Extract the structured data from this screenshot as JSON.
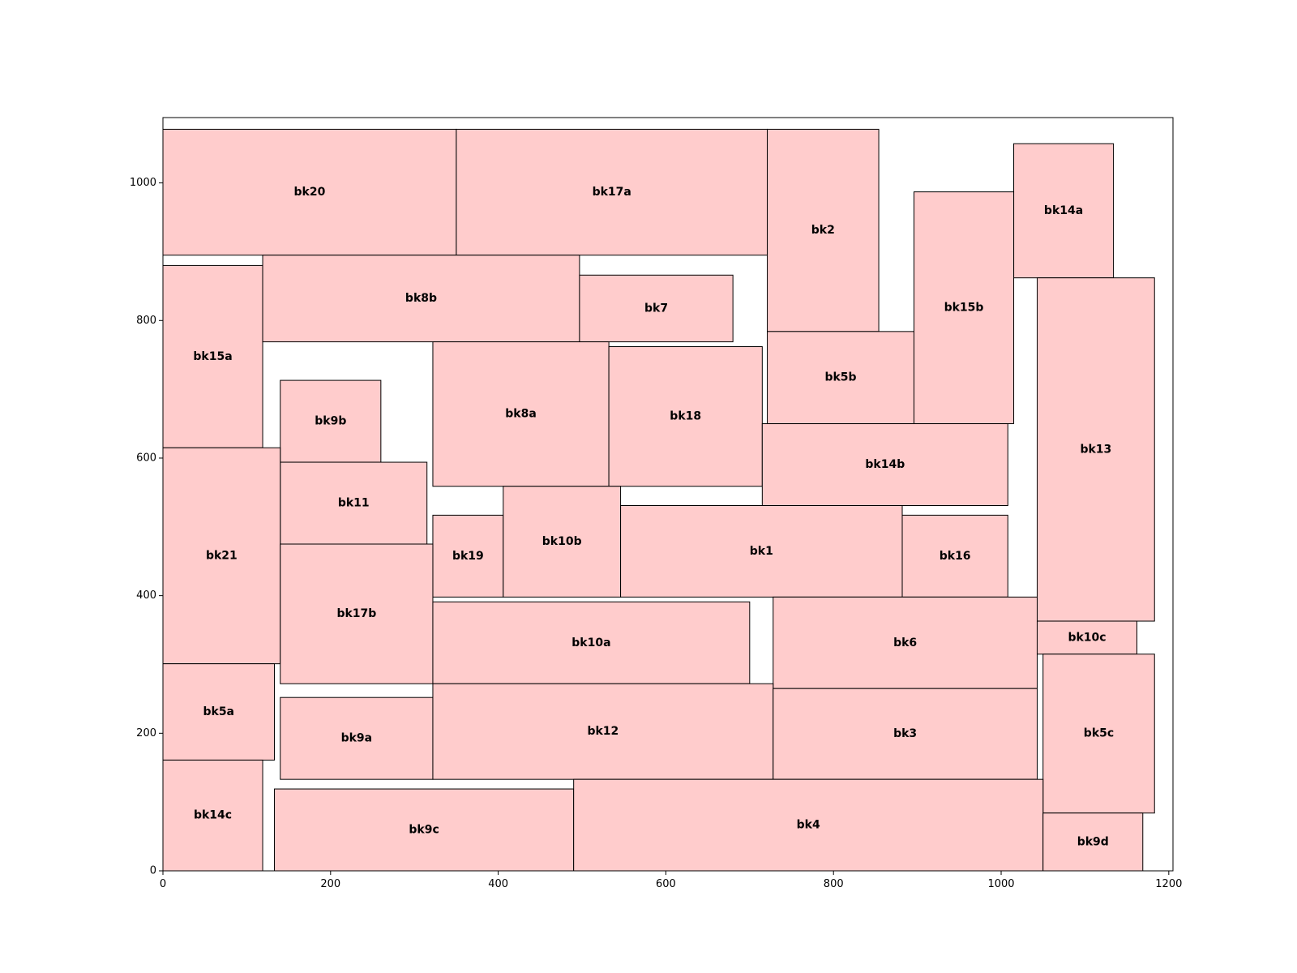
{
  "chart_data": {
    "type": "floorplan",
    "title": "",
    "xlabel": "",
    "ylabel": "",
    "xlim": [
      0,
      1205
    ],
    "ylim": [
      0,
      1095
    ],
    "x_ticks": [
      0,
      200,
      400,
      600,
      800,
      1000,
      1200
    ],
    "y_ticks": [
      0,
      200,
      400,
      600,
      800,
      1000
    ],
    "fill_color": "#ffcccc",
    "edge_color": "#000000",
    "grid": false,
    "blocks": [
      {
        "label": "bk20",
        "x0": 0,
        "y0": 895,
        "x1": 350,
        "y1": 1078
      },
      {
        "label": "bk17a",
        "x0": 350,
        "y0": 895,
        "x1": 721,
        "y1": 1078
      },
      {
        "label": "bk2",
        "x0": 721,
        "y0": 784,
        "x1": 854,
        "y1": 1078
      },
      {
        "label": "bk14a",
        "x0": 1015,
        "y0": 862,
        "x1": 1134,
        "y1": 1057
      },
      {
        "label": "bk15b",
        "x0": 896,
        "y0": 650,
        "x1": 1015,
        "y1": 987
      },
      {
        "label": "bk15a",
        "x0": 0,
        "y0": 615,
        "x1": 119,
        "y1": 880
      },
      {
        "label": "bk8b",
        "x0": 119,
        "y0": 769,
        "x1": 497,
        "y1": 895
      },
      {
        "label": "bk7",
        "x0": 497,
        "y0": 769,
        "x1": 680,
        "y1": 866
      },
      {
        "label": "bk13",
        "x0": 1043,
        "y0": 363,
        "x1": 1183,
        "y1": 862
      },
      {
        "label": "bk5b",
        "x0": 721,
        "y0": 650,
        "x1": 896,
        "y1": 784
      },
      {
        "label": "bk9b",
        "x0": 140,
        "y0": 594,
        "x1": 260,
        "y1": 713
      },
      {
        "label": "bk8a",
        "x0": 322,
        "y0": 559,
        "x1": 532,
        "y1": 769
      },
      {
        "label": "bk18",
        "x0": 532,
        "y0": 559,
        "x1": 715,
        "y1": 762
      },
      {
        "label": "bk14b",
        "x0": 715,
        "y0": 531,
        "x1": 1008,
        "y1": 650
      },
      {
        "label": "bk11",
        "x0": 140,
        "y0": 475,
        "x1": 315,
        "y1": 594
      },
      {
        "label": "bk21",
        "x0": 0,
        "y0": 301,
        "x1": 140,
        "y1": 615
      },
      {
        "label": "bk19",
        "x0": 322,
        "y0": 398,
        "x1": 406,
        "y1": 517
      },
      {
        "label": "bk10b",
        "x0": 406,
        "y0": 398,
        "x1": 546,
        "y1": 559
      },
      {
        "label": "bk1",
        "x0": 546,
        "y0": 398,
        "x1": 882,
        "y1": 531
      },
      {
        "label": "bk16",
        "x0": 882,
        "y0": 398,
        "x1": 1008,
        "y1": 517
      },
      {
        "label": "bk17b",
        "x0": 140,
        "y0": 272,
        "x1": 322,
        "y1": 475
      },
      {
        "label": "bk10a",
        "x0": 322,
        "y0": 272,
        "x1": 700,
        "y1": 391
      },
      {
        "label": "bk6",
        "x0": 728,
        "y0": 265,
        "x1": 1043,
        "y1": 398
      },
      {
        "label": "bk10c",
        "x0": 1043,
        "y0": 315,
        "x1": 1162,
        "y1": 363
      },
      {
        "label": "bk5a",
        "x0": 0,
        "y0": 161,
        "x1": 133,
        "y1": 301
      },
      {
        "label": "bk9a",
        "x0": 140,
        "y0": 133,
        "x1": 322,
        "y1": 252
      },
      {
        "label": "bk12",
        "x0": 322,
        "y0": 133,
        "x1": 728,
        "y1": 272
      },
      {
        "label": "bk3",
        "x0": 728,
        "y0": 133,
        "x1": 1043,
        "y1": 265
      },
      {
        "label": "bk5c",
        "x0": 1050,
        "y0": 84,
        "x1": 1183,
        "y1": 315
      },
      {
        "label": "bk14c",
        "x0": 0,
        "y0": 0,
        "x1": 119,
        "y1": 161
      },
      {
        "label": "bk9c",
        "x0": 133,
        "y0": 0,
        "x1": 490,
        "y1": 119
      },
      {
        "label": "bk4",
        "x0": 490,
        "y0": 0,
        "x1": 1050,
        "y1": 133
      },
      {
        "label": "bk9d",
        "x0": 1050,
        "y0": 0,
        "x1": 1169,
        "y1": 84
      }
    ]
  }
}
